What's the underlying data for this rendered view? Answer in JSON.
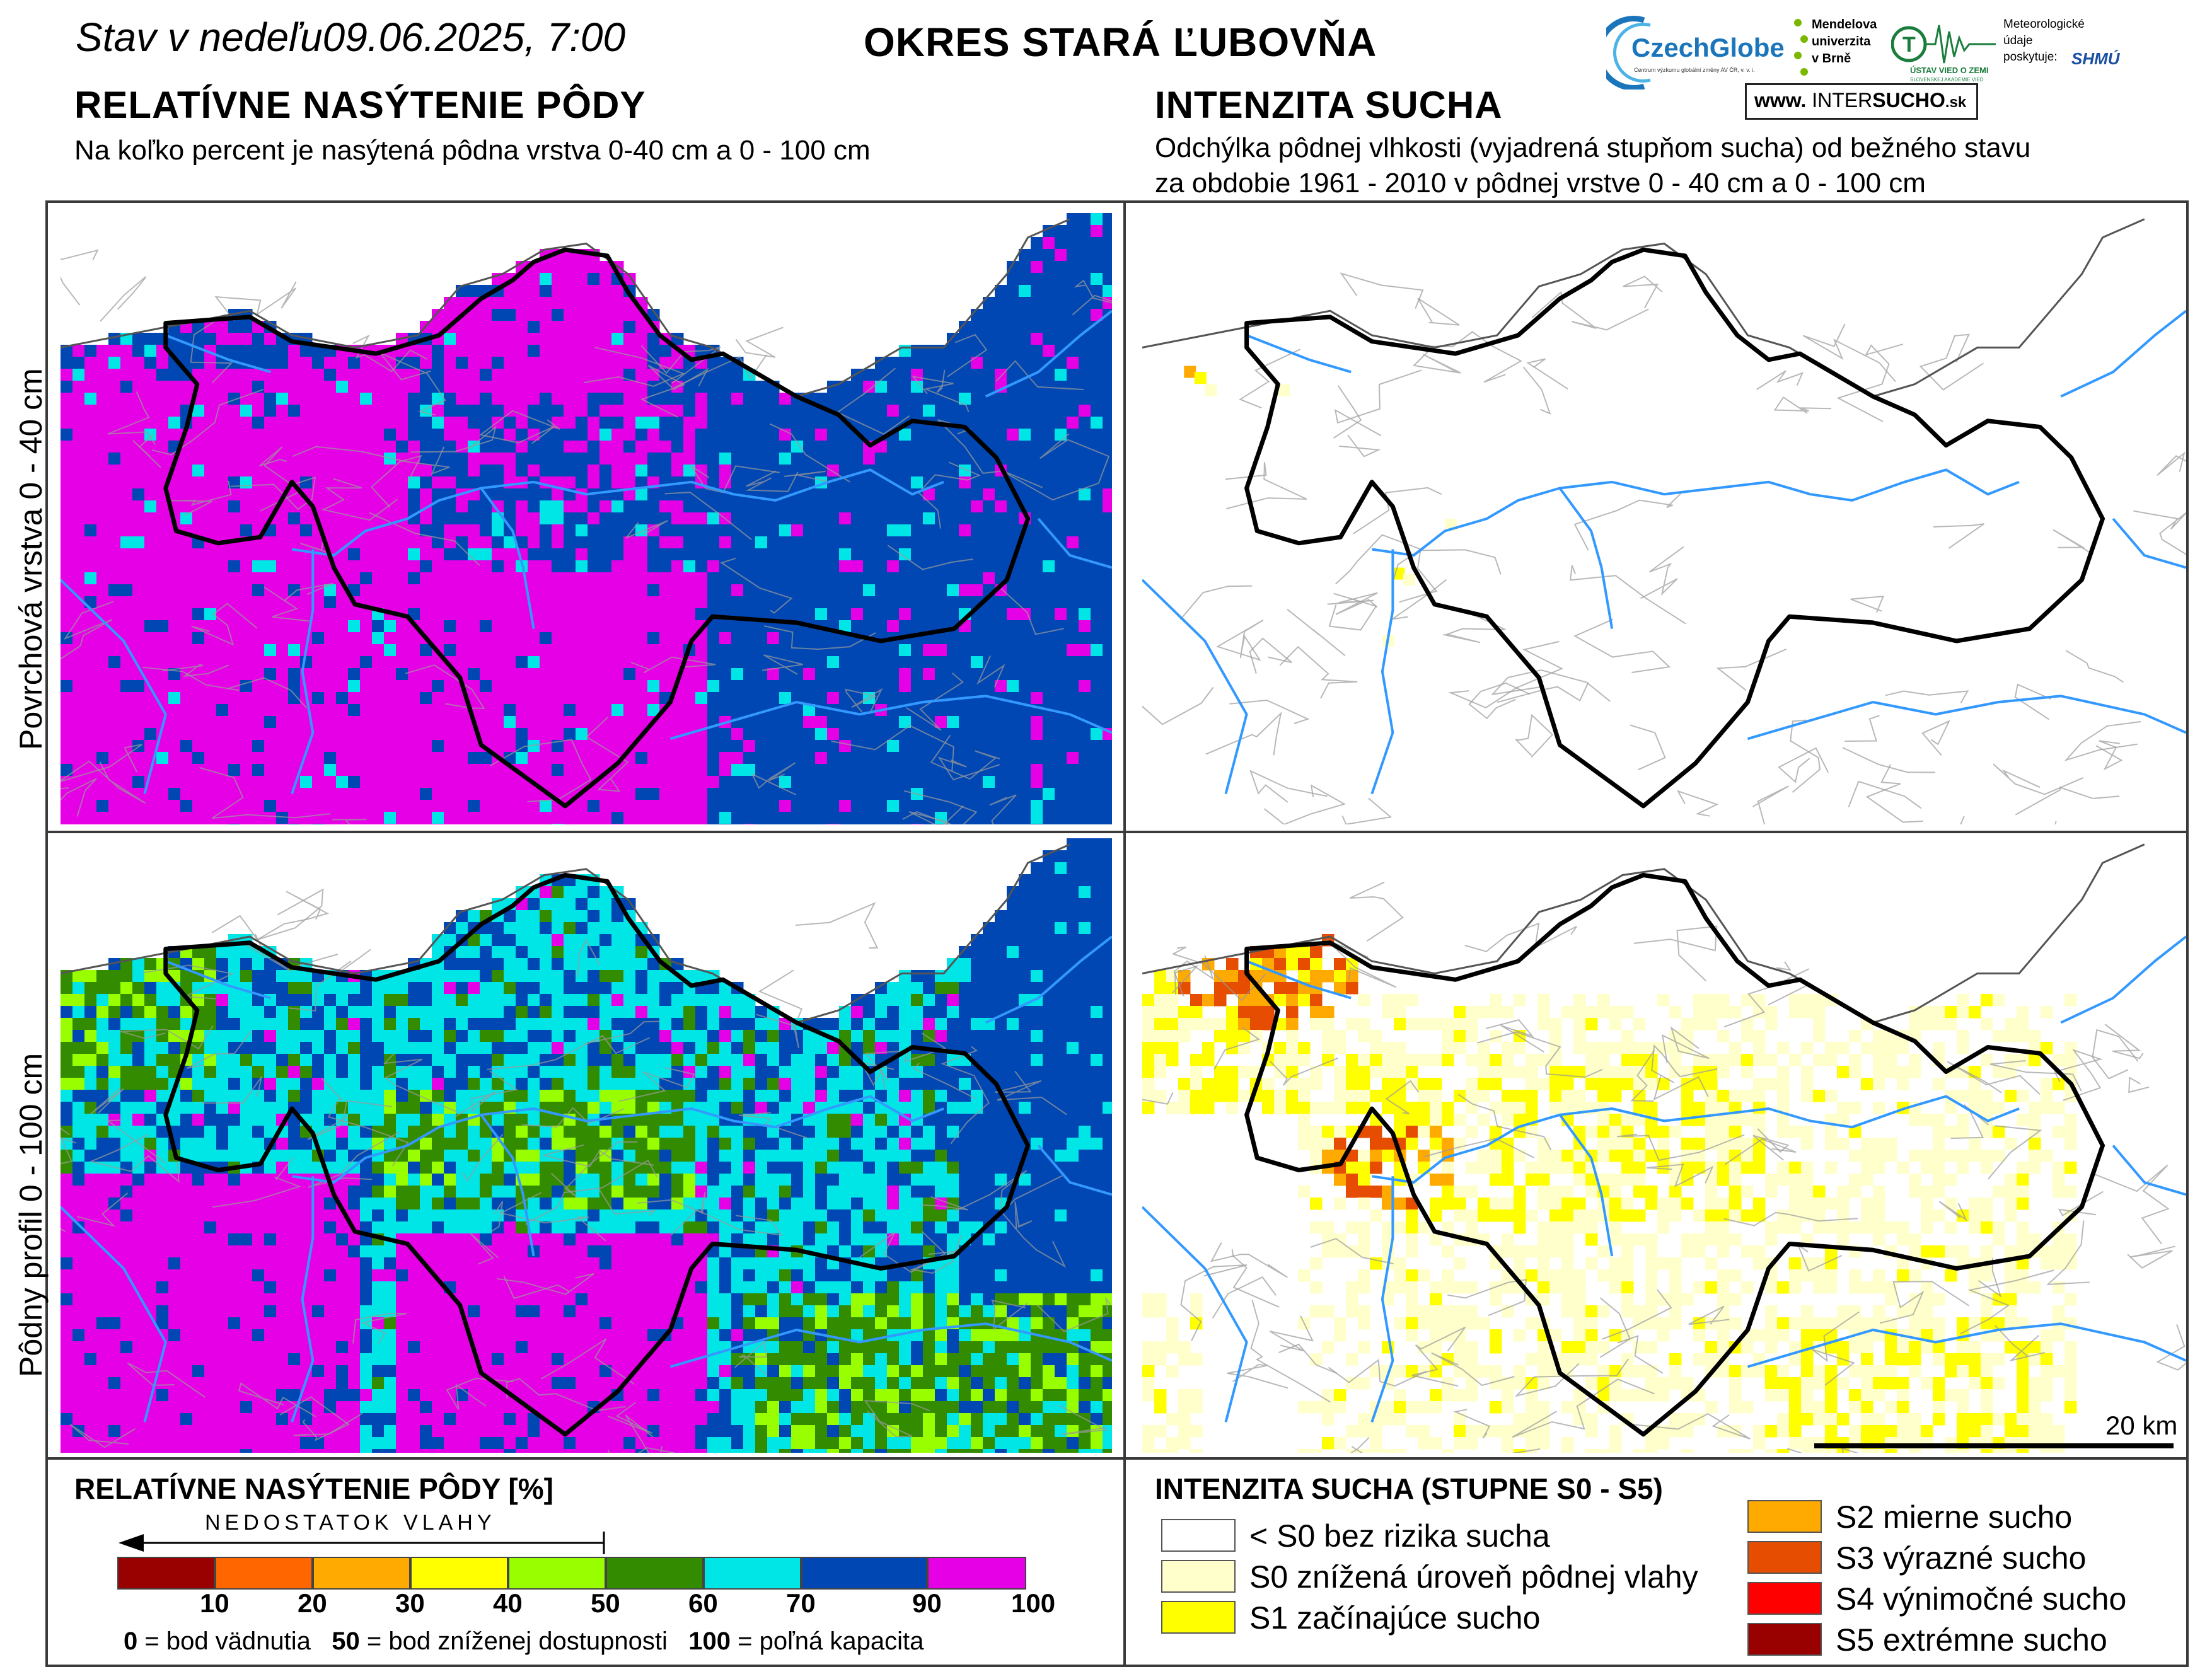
{
  "header": {
    "date_prefix": "Stav v nedeľu",
    "date_value": "09.06.2025, 7:00",
    "district": "OKRES  STARÁ ĽUBOVŇA"
  },
  "left": {
    "title": "RELATÍVNE NASÝTENIE PÔDY",
    "subtitle": "Na koľko percent je nasýtená pôdna vrstva 0-40 cm a 0 - 100 cm"
  },
  "right": {
    "title": "INTENZITA SUCHA",
    "subtitle_line1": "Odchýlka pôdnej vlhkosti (vyjadrená stupňom sucha) od bežného stavu",
    "subtitle_line2": "za obdobie 1961 - 2010 v pôdnej vrstve 0 - 40 cm a 0 - 100 cm"
  },
  "rows": {
    "top_label": "Povrchová vrstva 0 - 40 cm",
    "bottom_label": "Pôdny profil 0 - 100 cm"
  },
  "logos": {
    "czechglobe": "CzechGlobe",
    "czechglobe_sub": "Centrum výzkumu globální změny AV ČR, v. v. i.",
    "mendel": [
      "Mendelova",
      "univerzita",
      "v Brně"
    ],
    "uvz": "ÚSTAV VIED O ZEMI",
    "uvz_sub": "SLOVENSKEJ AKADÉMIE VIED",
    "meteo": [
      "Meteorologické",
      "údaje",
      "poskytuje:"
    ],
    "shmu": "SHMÚ",
    "intersucho_prefix": "www.",
    "intersucho_inter": "INTER",
    "intersucho_sucho": "SUCHO",
    "intersucho_suffix": ".sk"
  },
  "scale_bar": {
    "label": "20 km",
    "distance_km": 20
  },
  "saturation_legend": {
    "title": "RELATÍVNE NASÝTENIE PÔDY [%]",
    "arrow_label": "NEDOSTATOK VLAHY",
    "bins": [
      {
        "color": "#990000"
      },
      {
        "color": "#ff6600"
      },
      {
        "color": "#ffaa00"
      },
      {
        "color": "#ffff00"
      },
      {
        "color": "#99ff00"
      },
      {
        "color": "#338c00"
      },
      {
        "color": "#00e6e6"
      },
      {
        "color": "#0047b3"
      },
      {
        "color": "#e600e6"
      }
    ],
    "ticks": [
      "10",
      "20",
      "30",
      "40",
      "50",
      "60",
      "70",
      "90",
      "100"
    ],
    "note_parts": [
      {
        "bold": "0",
        "text": " = bod vädnutia"
      },
      {
        "bold": "50",
        "text": " = bod zníženej dostupnosti"
      },
      {
        "bold": "100",
        "text": " = poľná kapacita"
      }
    ]
  },
  "drought_legend": {
    "title": "INTENZITA SUCHA (STUPNE S0 - S5)",
    "items": [
      {
        "label": "< S0 bez rizika sucha",
        "color": "#ffffff"
      },
      {
        "label": "S0 znížená úroveň pôdnej vlahy",
        "color": "#ffffcc"
      },
      {
        "label": "S1 začínajúce sucho",
        "color": "#ffff00"
      },
      {
        "label": "S2 mierne sucho",
        "color": "#ffaa00"
      },
      {
        "label": "S3 výrazné sucho",
        "color": "#e64d00"
      },
      {
        "label": "S4 výnimočné sucho",
        "color": "#ff0000"
      },
      {
        "label": "S5 extrémne sucho",
        "color": "#990000"
      }
    ]
  },
  "colors": {
    "border": "#000000",
    "river": "#3399ff",
    "muni": "#9a9a9a"
  }
}
